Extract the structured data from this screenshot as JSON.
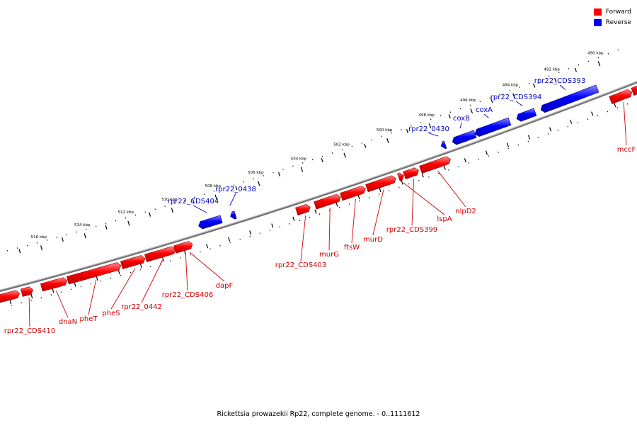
{
  "caption": "Rickettsia prowazekii Rp22, complete genome. - 0..1111612",
  "legend": {
    "forward": {
      "label": "Forward",
      "color": "#ff0000"
    },
    "reverse": {
      "label": "Reverse",
      "color": "#0000ff"
    }
  },
  "ticks": [
    "490 kbp",
    "492 kbp",
    "494 kbp",
    "496 kbp",
    "498 kbp",
    "500 kbp",
    "502 kbp",
    "504 kbp",
    "506 kbp",
    "508 kbp",
    "510 kbp",
    "512 kbp",
    "514 kbp",
    "516 kbp"
  ],
  "genes": {
    "forward": [
      "rpr22_CDS410",
      "dnaN",
      "pheT",
      "pheS",
      "rpr22_0442",
      "rpr22_CDS406",
      "dapF",
      "rpr22_CDS403",
      "murG",
      "ftsW",
      "murD",
      "rpr22_CDS399",
      "lspA",
      "nlpD2",
      "mccF"
    ],
    "reverse": [
      "rpr22_CDS404",
      "rpr22_0438",
      "rpr22_0430",
      "coxB",
      "coxA",
      "rpr22_CDS394",
      "rpr22_CDS393"
    ]
  }
}
